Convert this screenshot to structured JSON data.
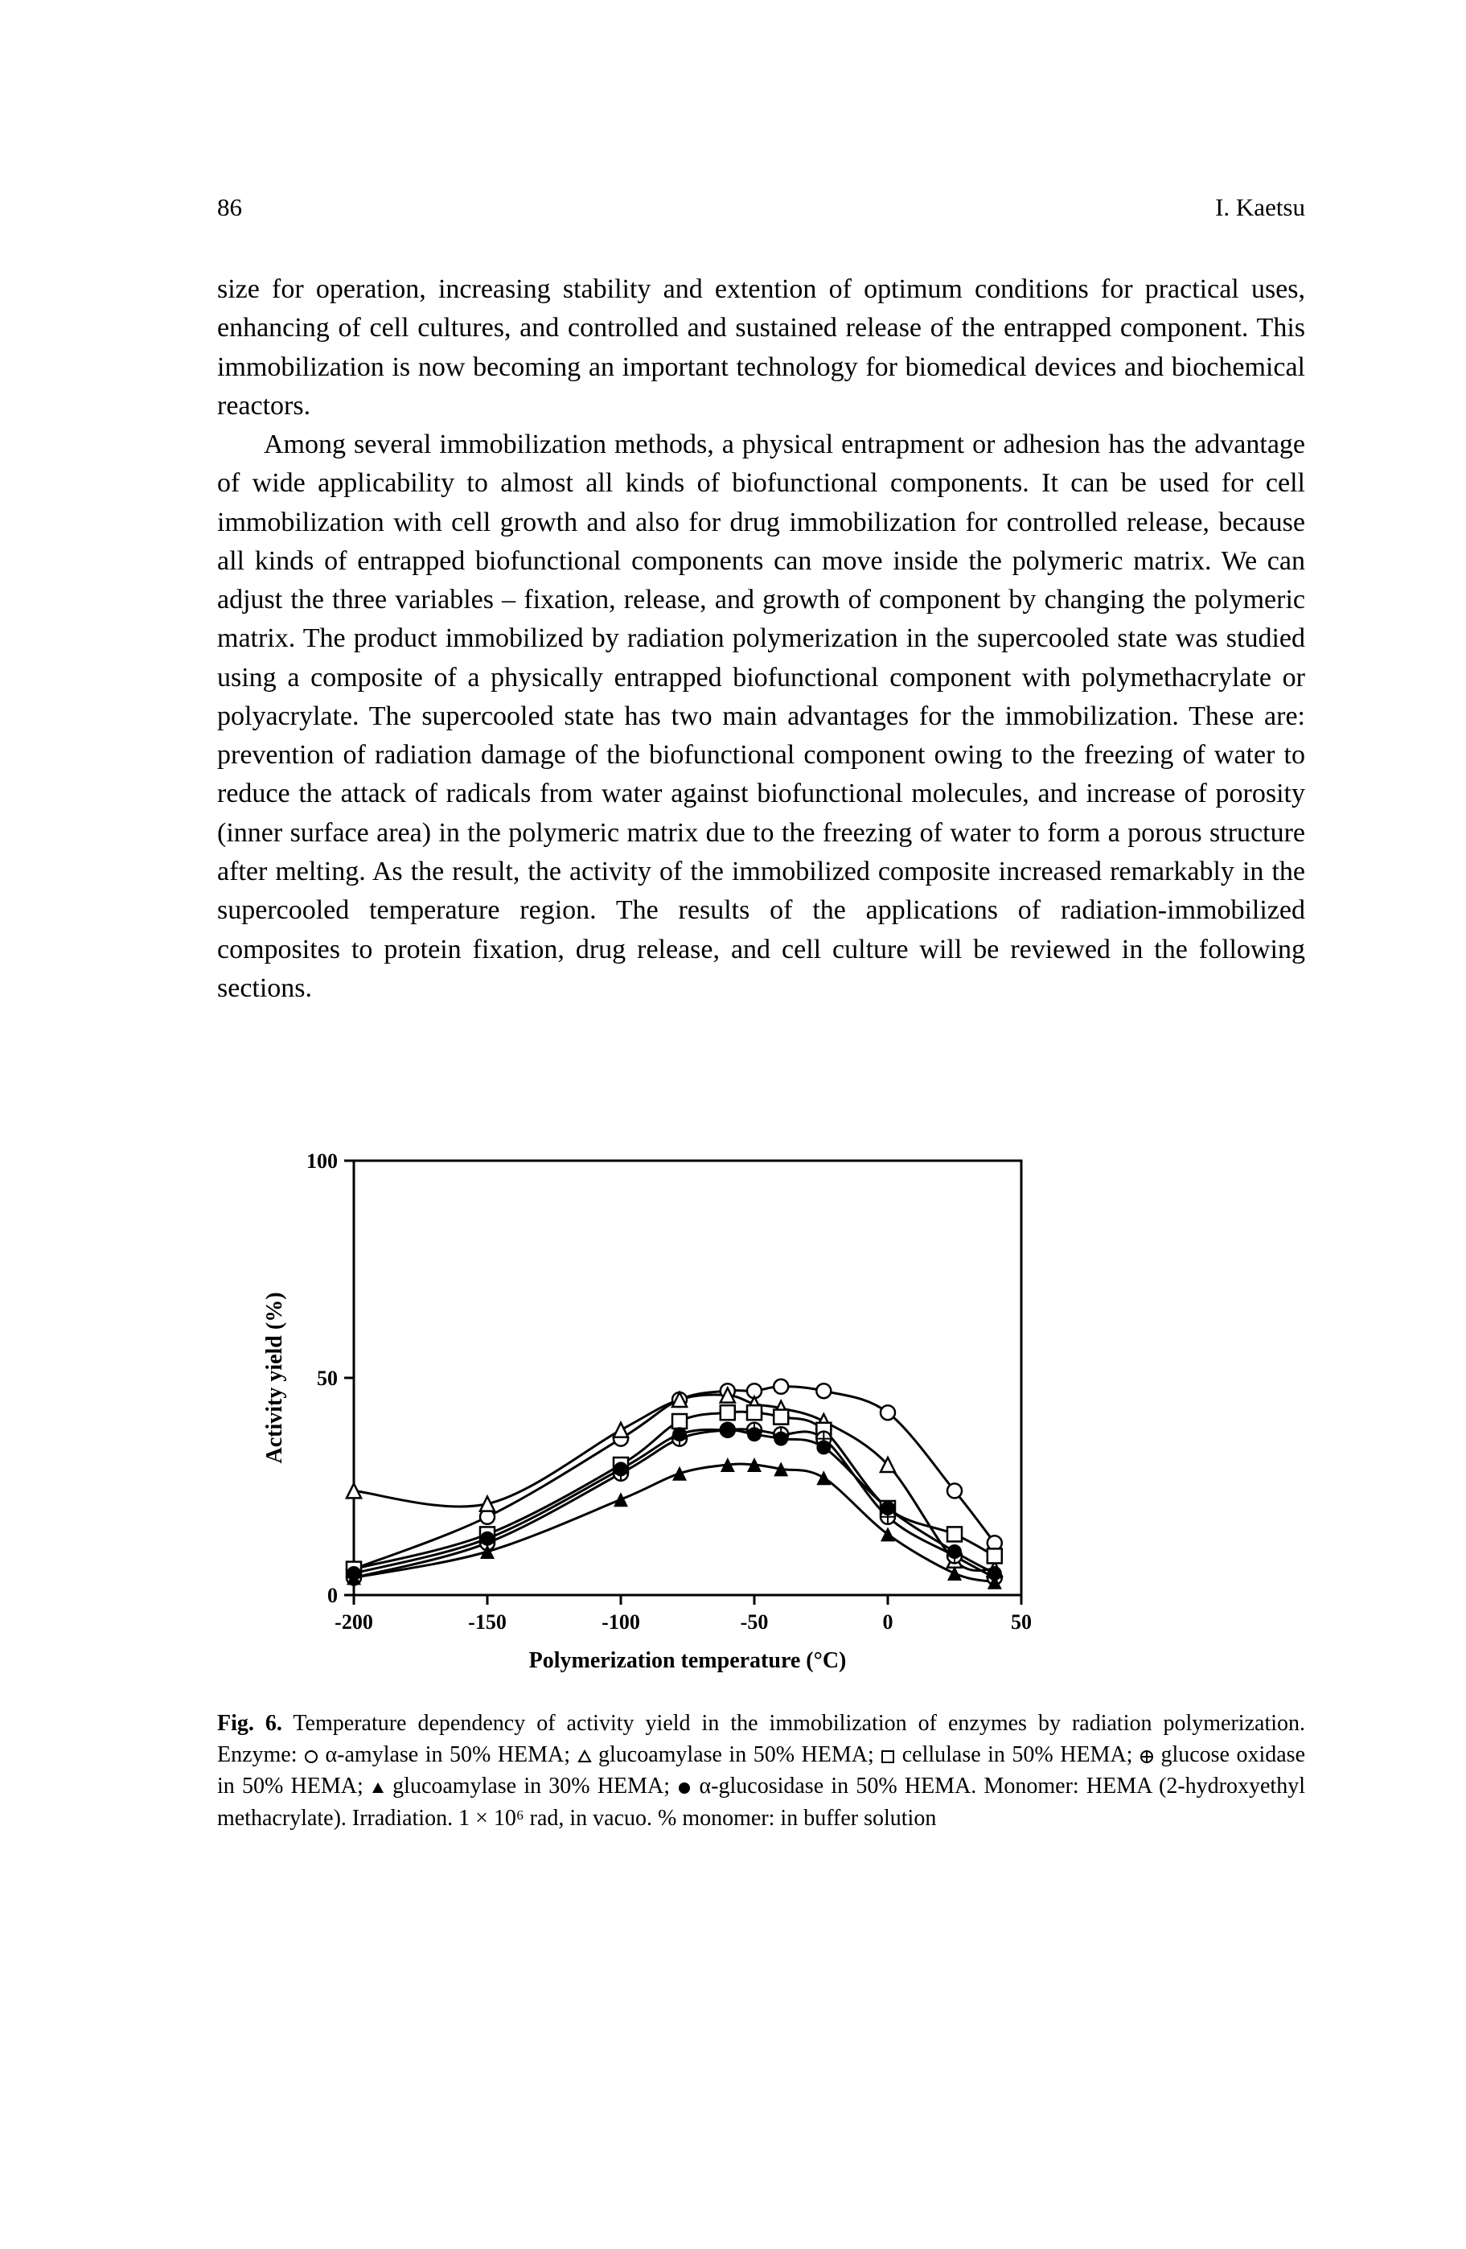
{
  "header": {
    "page_number": "86",
    "author": "I. Kaetsu"
  },
  "body": {
    "p1": "size for operation, increasing stability and extention of optimum conditions for practical uses, enhancing of cell cultures, and controlled and sustained release of the entrapped component. This immobilization is now becoming an important technology for biomedical devices and biochemical reactors.",
    "p2": "Among several immobilization methods, a physical entrapment or adhesion has the advantage of wide applicability to almost all kinds of biofunctional components. It can be used for cell immobilization with cell growth and also for drug immobilization for controlled release, because all kinds of entrapped biofunctional components can move inside the polymeric matrix. We can adjust the three variables – fixation, release, and growth of component   by changing the polymeric matrix. The product immobilized by radiation polymerization in the supercooled state was studied using a composite of a physically entrapped biofunctional component with polymethacrylate or polyacrylate. The supercooled state has two main advantages for the immobilization. These are: prevention of radiation damage of the biofunctional component owing to the freezing of water to reduce the attack of radicals from water against biofunctional molecules, and increase of porosity (inner surface area) in the polymeric matrix due to the freezing of water to form a porous structure after melting. As the result, the activity of the immobilized composite increased remarkably in the supercooled temperature region. The results of the applications of radiation-immobilized composites to protein fixation, drug release, and cell culture will be reviewed in the following sections."
  },
  "figure": {
    "type": "line",
    "x_label": "Polymerization temperature (°C)",
    "y_label": "Activity yield (%)",
    "x_ticks": [
      -200,
      -150,
      -100,
      -50,
      0,
      50
    ],
    "y_ticks": [
      0,
      50,
      100
    ],
    "xlim": [
      -200,
      50
    ],
    "ylim": [
      0,
      100
    ],
    "line_color": "#000000",
    "line_width": 3,
    "marker_size": 9,
    "axis_color": "#000000",
    "axis_width": 3,
    "label_fontsize": 28,
    "tick_fontsize": 26,
    "series": [
      {
        "name": "α-amylase in 50% HEMA",
        "marker": "circle-open",
        "x": [
          -200,
          -150,
          -100,
          -78,
          -60,
          -50,
          -40,
          -24,
          0,
          25,
          40
        ],
        "y": [
          6,
          18,
          36,
          45,
          47,
          47,
          48,
          47,
          42,
          24,
          12
        ]
      },
      {
        "name": "glucoamylase in 50% HEMA",
        "marker": "triangle-open",
        "x": [
          -200,
          -150,
          -100,
          -78,
          -60,
          -50,
          -40,
          -24,
          0,
          25,
          40
        ],
        "y": [
          24,
          21,
          38,
          45,
          46,
          44,
          43,
          40,
          30,
          8,
          6
        ]
      },
      {
        "name": "cellulase in 50% HEMA",
        "marker": "square-open",
        "x": [
          -200,
          -150,
          -100,
          -78,
          -60,
          -50,
          -40,
          -24,
          0,
          25,
          40
        ],
        "y": [
          6,
          14,
          30,
          40,
          42,
          42,
          41,
          38,
          20,
          14,
          9
        ]
      },
      {
        "name": "glucose oxidase in 50% HEMA",
        "marker": "circle-plus",
        "x": [
          -200,
          -150,
          -100,
          -78,
          -60,
          -50,
          -40,
          -24,
          0,
          25,
          40
        ],
        "y": [
          4,
          12,
          28,
          36,
          38,
          38,
          37,
          36,
          18,
          9,
          4
        ]
      },
      {
        "name": "glucoamylase in 30% HEMA",
        "marker": "triangle-filled",
        "x": [
          -200,
          -150,
          -100,
          -78,
          -60,
          -50,
          -40,
          -24,
          0,
          25,
          40
        ],
        "y": [
          4,
          10,
          22,
          28,
          30,
          30,
          29,
          27,
          14,
          5,
          3
        ]
      },
      {
        "name": "α-glucosidase in 50% HEMA",
        "marker": "circle-filled",
        "x": [
          -200,
          -150,
          -100,
          -78,
          -60,
          -50,
          -40,
          -24,
          0,
          25,
          40
        ],
        "y": [
          5,
          13,
          29,
          37,
          38,
          37,
          36,
          34,
          20,
          10,
          5
        ]
      }
    ]
  },
  "caption": {
    "prefix": "Fig. 6.",
    "text_a": " Temperature dependency of activity yield in the immobilization of enzymes by radiation polymerization. Enzyme: ",
    "s1": " α-amylase in 50% HEMA; ",
    "s2": " glucoamylase in 50% HEMA; ",
    "s3": " cellulase in 50% HEMA; ",
    "s4": " glucose oxidase in 50% HEMA; ",
    "s5": " glucoamylase in 30% HEMA; ",
    "s6": " α-glucosidase in 50% HEMA. Monomer: HEMA (2-hydroxyethyl methacrylate). Irradiation. 1 × 10⁶ rad, in vacuo. % monomer: in buffer solution"
  }
}
